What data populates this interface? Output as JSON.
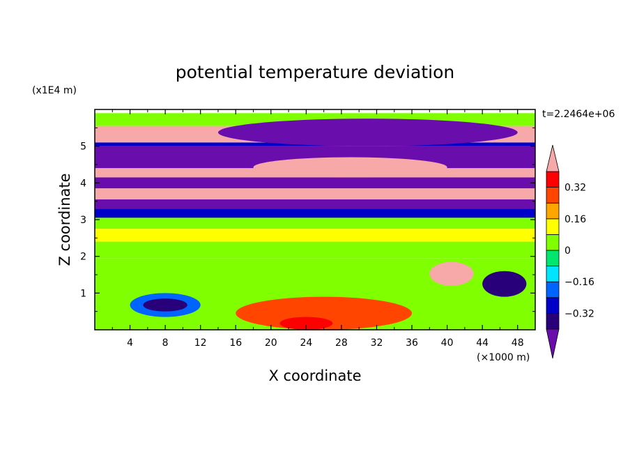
{
  "chart_data": {
    "type": "heatmap",
    "title": "potential temperature deviation",
    "xlabel": "X coordinate",
    "ylabel": "Z coordinate",
    "x_unit": "(×1000 m)",
    "y_unit": "(x1E4 m)",
    "time_label": "t=2.2464e+06",
    "xlim": [
      0,
      50
    ],
    "ylim": [
      0,
      6
    ],
    "x_ticks": [
      4,
      8,
      12,
      16,
      20,
      24,
      28,
      32,
      36,
      40,
      44,
      48
    ],
    "y_ticks": [
      1,
      2,
      3,
      4,
      5
    ],
    "colorbar": {
      "levels": [
        -0.4,
        -0.32,
        -0.24,
        -0.16,
        -0.08,
        0,
        0.08,
        0.16,
        0.24,
        0.32,
        0.4
      ],
      "tick_values": [
        0.32,
        0.16,
        0,
        -0.16,
        -0.32
      ],
      "tick_labels": [
        "0.32",
        "0.16",
        "0",
        "−0.16",
        "−0.32"
      ],
      "colors": [
        "#6a0dad",
        "#27007a",
        "#0000c8",
        "#0064ff",
        "#00e5ff",
        "#00e66e",
        "#7fff00",
        "#ffff00",
        "#ffa500",
        "#ff4500",
        "#ff0000",
        "#f7a8a8"
      ],
      "extend": "both"
    },
    "bands": [
      {
        "z": [
          5.55,
          5.9
        ],
        "value": 0.05
      },
      {
        "z": [
          5.1,
          5.55
        ],
        "value": 0.45
      },
      {
        "z": [
          5.0,
          5.1
        ],
        "value": -0.3
      },
      {
        "z": [
          4.4,
          5.0
        ],
        "value": -0.45
      },
      {
        "z": [
          4.15,
          4.4
        ],
        "value": 0.45
      },
      {
        "z": [
          3.85,
          4.15
        ],
        "value": -0.45
      },
      {
        "z": [
          3.55,
          3.85
        ],
        "value": 0.45
      },
      {
        "z": [
          3.3,
          3.55
        ],
        "value": -0.45
      },
      {
        "z": [
          3.05,
          3.3
        ],
        "value": -0.3
      },
      {
        "z": [
          2.75,
          3.05
        ],
        "value": 0.05
      },
      {
        "z": [
          2.4,
          2.75
        ],
        "value": 0.1
      },
      {
        "z": [
          1.95,
          2.4
        ],
        "value": 0.06
      },
      {
        "z": [
          0.0,
          1.95
        ],
        "value": 0.03
      }
    ],
    "features": [
      {
        "x": [
          14,
          48
        ],
        "z": [
          5.0,
          5.75
        ],
        "value": -0.45
      },
      {
        "x": [
          18,
          40
        ],
        "z": [
          4.15,
          4.7
        ],
        "value": 0.45
      },
      {
        "x": [
          4,
          12
        ],
        "z": [
          0.35,
          1.0
        ],
        "value": -0.2
      },
      {
        "x": [
          5.5,
          10.5
        ],
        "z": [
          0.5,
          0.85
        ],
        "value": -0.35
      },
      {
        "x": [
          16,
          36
        ],
        "z": [
          0.0,
          0.9
        ],
        "value": 0.25
      },
      {
        "x": [
          21,
          27
        ],
        "z": [
          0.0,
          0.35
        ],
        "value": 0.35
      },
      {
        "x": [
          38,
          43
        ],
        "z": [
          1.2,
          1.85
        ],
        "value": 0.45
      },
      {
        "x": [
          44,
          49
        ],
        "z": [
          0.9,
          1.6
        ],
        "value": -0.4
      }
    ]
  }
}
